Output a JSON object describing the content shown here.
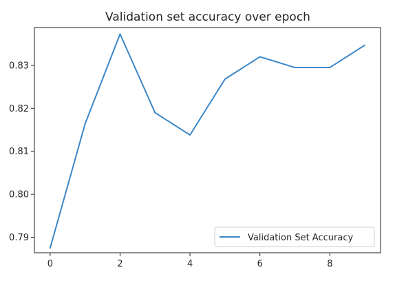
{
  "chart_data": {
    "type": "line",
    "title": "Validation set accuracy over epoch",
    "xlabel": "",
    "ylabel": "",
    "x": [
      0,
      1,
      2,
      3,
      4,
      5,
      6,
      7,
      8,
      9
    ],
    "series": [
      {
        "name": "Validation Set Accuracy",
        "color": "#3a86c8",
        "values": [
          0.7875,
          0.8164,
          0.8373,
          0.819,
          0.8138,
          0.8268,
          0.832,
          0.8295,
          0.8295,
          0.8347
        ]
      }
    ],
    "xlim": [
      -0.45,
      9.45
    ],
    "ylim": [
      0.7864,
      0.8388
    ],
    "xticks": [
      0,
      2,
      4,
      6,
      8
    ],
    "yticks": [
      0.79,
      0.8,
      0.81,
      0.82,
      0.83
    ],
    "ytick_labels": [
      "0.79",
      "0.80",
      "0.81",
      "0.82",
      "0.83"
    ],
    "grid": false,
    "legend": "lower-right"
  }
}
